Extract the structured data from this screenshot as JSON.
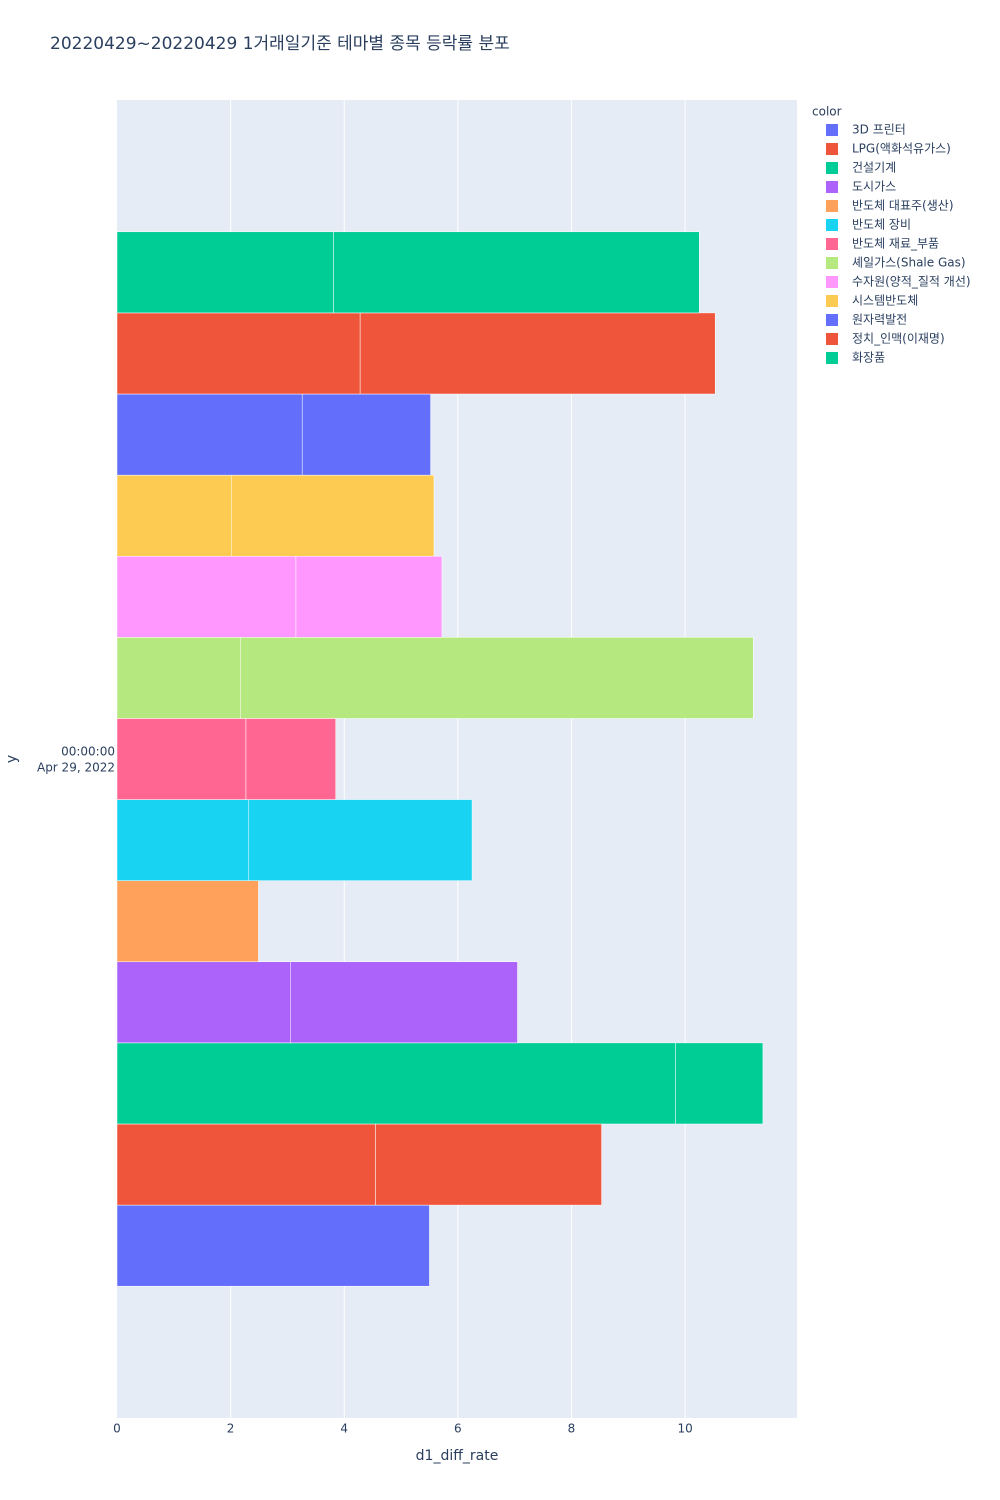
{
  "chart_data": {
    "type": "bar",
    "orientation": "h",
    "title": "20220429~20220429 1거래일기준 테마별 종목 등락률 분포",
    "x_label": "d1_diff_rate",
    "y_label": "y",
    "y_tick_lines": [
      "00:00:00",
      "Apr 29, 2022"
    ],
    "legend_title": "color",
    "legend_position": "right",
    "grid": true,
    "xlim": [
      0,
      11.97
    ],
    "xticks": [
      0,
      2,
      4,
      6,
      8,
      10
    ],
    "series": [
      {
        "name": "3D 프린터",
        "color": "#636efa",
        "values": [
          5.5
        ]
      },
      {
        "name": "LPG(액화석유가스)",
        "color": "#EF553B",
        "values": [
          4.55,
          3.98
        ]
      },
      {
        "name": "건설기계",
        "color": "#00cc96",
        "values": [
          9.83,
          1.54
        ]
      },
      {
        "name": "도시가스",
        "color": "#ab63fa",
        "values": [
          3.05,
          4.0
        ]
      },
      {
        "name": "반도체 대표주(생산)",
        "color": "#FFA15A",
        "values": [
          2.49
        ]
      },
      {
        "name": "반도체 장비",
        "color": "#19d3f3",
        "values": [
          2.32,
          3.93
        ]
      },
      {
        "name": "반도체 재료_부품",
        "color": "#FF6692",
        "values": [
          2.27,
          1.58
        ]
      },
      {
        "name": "셰일가스(Shale Gas)",
        "color": "#B6E880",
        "values": [
          2.17,
          9.03
        ]
      },
      {
        "name": "수자원(양적_질적 개선)",
        "color": "#FF97FF",
        "values": [
          3.15,
          2.57
        ]
      },
      {
        "name": "시스템반도체",
        "color": "#FECB52",
        "values": [
          2.02,
          3.56
        ]
      },
      {
        "name": "원자력발전",
        "color": "#636efa",
        "values": [
          3.26,
          2.26
        ]
      },
      {
        "name": "정치_인맥(이재명)",
        "color": "#EF553B",
        "values": [
          4.28,
          6.25
        ]
      },
      {
        "name": "화장품",
        "color": "#00cc96",
        "values": [
          3.81,
          6.44
        ]
      }
    ]
  }
}
